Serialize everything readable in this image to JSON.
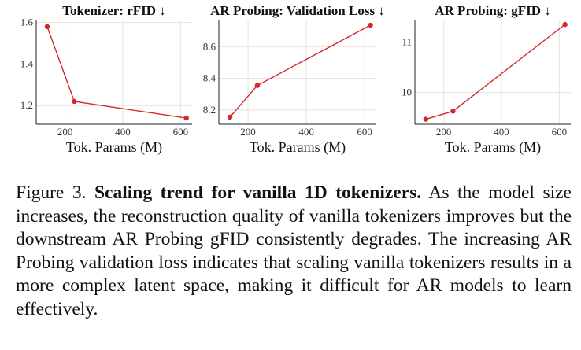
{
  "chart_data": [
    {
      "type": "line",
      "title": "Tokenizer: rFID ↓",
      "xlabel": "Tok. Params (M)",
      "ylabel": "",
      "x": [
        138,
        232,
        620
      ],
      "series": [
        {
          "values": [
            1.58,
            1.22,
            1.14
          ]
        }
      ],
      "xlim": [
        100,
        640
      ],
      "ylim": [
        1.11,
        1.61
      ],
      "xticks": [
        200,
        400,
        600
      ],
      "yticks": [
        1.2,
        1.4,
        1.6
      ],
      "ytick_labels": [
        "1.2",
        "1.4",
        "1.6"
      ],
      "grid": true,
      "color": "#d62728"
    },
    {
      "type": "line",
      "title": "AR Probing: Validation Loss ↓",
      "xlabel": "Tok. Params (M)",
      "ylabel": "",
      "x": [
        138,
        232,
        620
      ],
      "series": [
        {
          "values": [
            8.155,
            8.355,
            8.735
          ]
        }
      ],
      "xlim": [
        100,
        640
      ],
      "ylim": [
        8.11,
        8.765
      ],
      "xticks": [
        200,
        400,
        600
      ],
      "yticks": [
        8.2,
        8.4,
        8.6
      ],
      "ytick_labels": [
        "8.2",
        "8.4",
        "8.6"
      ],
      "grid": true,
      "color": "#d62728"
    },
    {
      "type": "line",
      "title": "AR Probing: gFID ↓",
      "xlabel": "Tok. Params (M)",
      "ylabel": "",
      "x": [
        138,
        232,
        620
      ],
      "series": [
        {
          "values": [
            9.47,
            9.63,
            11.35
          ]
        }
      ],
      "xlim": [
        100,
        640
      ],
      "ylim": [
        9.37,
        11.43
      ],
      "xticks": [
        200,
        400,
        600
      ],
      "yticks": [
        10,
        11
      ],
      "ytick_labels": [
        "10",
        "11"
      ],
      "grid": true,
      "color": "#d62728"
    }
  ],
  "caption": {
    "figure_label": "Figure 3.",
    "bold_title": "Scaling trend for vanilla 1D tokenizers.",
    "body": "As the model size increases, the reconstruction quality of vanilla tokenizers improves but the downstream AR Probing gFID consistently degrades. The increasing AR Probing validation loss indicates that scaling vanilla tokenizers results in a more complex latent space, making it difficult for AR models to learn effectively."
  }
}
